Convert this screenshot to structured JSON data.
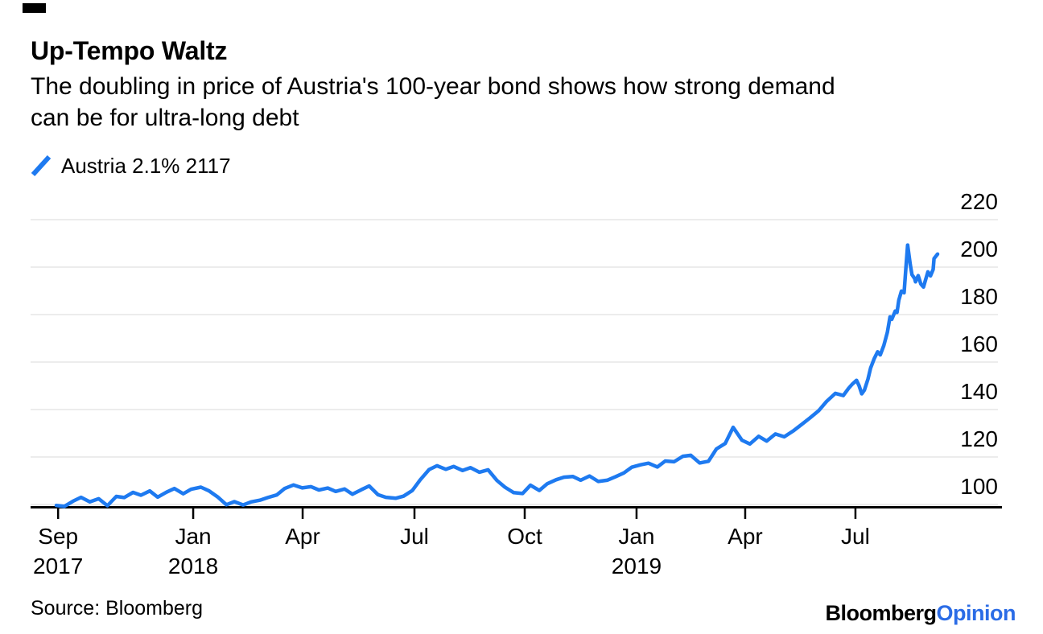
{
  "header": {
    "title": "Up-Tempo Waltz",
    "subtitle_line1": "The doubling in price of Austria's 100-year bond shows how strong demand",
    "subtitle_line2": "can be for ultra-long debt"
  },
  "legend": {
    "label": "Austria 2.1% 2117"
  },
  "footer": {
    "source": "Source: Bloomberg",
    "logo_black": "Bloomberg",
    "logo_accent": "Opinion"
  },
  "colors": {
    "line_blue": "#1e7af0",
    "logo_accent_blue": "#2b6ce6",
    "gridline_gray": "#e6e6e6",
    "axis_black": "#000000"
  },
  "chart_data": {
    "type": "line",
    "title": "Up-Tempo Waltz",
    "subtitle": "The doubling in price of Austria's 100-year bond shows how strong demand can be for ultra-long debt",
    "xlabel": "",
    "ylabel": "",
    "ylim": [
      97,
      222
    ],
    "grid": "horizontal-only",
    "legend_position": "top-left",
    "y_ticks": [
      220,
      200,
      180,
      160,
      140,
      120,
      100
    ],
    "x_ticks": [
      {
        "label": "Sep",
        "sublabel": "2017",
        "t": 0.002
      },
      {
        "label": "Jan",
        "sublabel": "2018",
        "t": 0.1553
      },
      {
        "label": "Apr",
        "sublabel": "",
        "t": 0.2795
      },
      {
        "label": "Jul",
        "sublabel": "",
        "t": 0.4064
      },
      {
        "label": "Oct",
        "sublabel": "",
        "t": 0.5315
      },
      {
        "label": "Jan",
        "sublabel": "2019",
        "t": 0.6584
      },
      {
        "label": "Apr",
        "sublabel": "",
        "t": 0.7817
      },
      {
        "label": "Jul",
        "sublabel": "",
        "t": 0.9068
      }
    ],
    "series": [
      {
        "name": "Austria 2.1% 2117",
        "color": "#1e7af0",
        "x_unit": "fraction of timeline Sep 2017 to Sep 2019",
        "y_unit": "bond price",
        "points": [
          [
            0,
            99.6
          ],
          [
            0.009,
            99.2
          ],
          [
            0.019,
            101.4
          ],
          [
            0.028,
            103
          ],
          [
            0.038,
            101.1
          ],
          [
            0.048,
            102.4
          ],
          [
            0.058,
            99.5
          ],
          [
            0.068,
            103.4
          ],
          [
            0.077,
            102.9
          ],
          [
            0.087,
            105.1
          ],
          [
            0.096,
            103.9
          ],
          [
            0.106,
            105.7
          ],
          [
            0.115,
            103.1
          ],
          [
            0.125,
            105.2
          ],
          [
            0.134,
            106.7
          ],
          [
            0.144,
            104.5
          ],
          [
            0.153,
            106.4
          ],
          [
            0.164,
            107.3
          ],
          [
            0.173,
            105.8
          ],
          [
            0.183,
            103.2
          ],
          [
            0.193,
            99.9
          ],
          [
            0.202,
            101.2
          ],
          [
            0.212,
            99.8
          ],
          [
            0.221,
            101.1
          ],
          [
            0.231,
            101.8
          ],
          [
            0.24,
            102.9
          ],
          [
            0.25,
            104
          ],
          [
            0.259,
            106.7
          ],
          [
            0.269,
            108.2
          ],
          [
            0.279,
            107
          ],
          [
            0.289,
            107.5
          ],
          [
            0.298,
            106.1
          ],
          [
            0.308,
            106.9
          ],
          [
            0.317,
            105.5
          ],
          [
            0.327,
            106.5
          ],
          [
            0.336,
            104.3
          ],
          [
            0.346,
            106.2
          ],
          [
            0.355,
            107.8
          ],
          [
            0.365,
            104.1
          ],
          [
            0.374,
            103
          ],
          [
            0.385,
            102.6
          ],
          [
            0.394,
            103.5
          ],
          [
            0.404,
            105.9
          ],
          [
            0.413,
            110.4
          ],
          [
            0.423,
            114.7
          ],
          [
            0.432,
            116.3
          ],
          [
            0.442,
            114.8
          ],
          [
            0.451,
            116
          ],
          [
            0.461,
            114.3
          ],
          [
            0.47,
            115.5
          ],
          [
            0.48,
            113.6
          ],
          [
            0.49,
            114.6
          ],
          [
            0.5,
            110.1
          ],
          [
            0.509,
            107.3
          ],
          [
            0.519,
            105
          ],
          [
            0.529,
            104.6
          ],
          [
            0.538,
            108.1
          ],
          [
            0.548,
            105.9
          ],
          [
            0.557,
            108.7
          ],
          [
            0.567,
            110.4
          ],
          [
            0.576,
            111.5
          ],
          [
            0.586,
            111.8
          ],
          [
            0.595,
            110.2
          ],
          [
            0.605,
            112
          ],
          [
            0.615,
            109.7
          ],
          [
            0.625,
            110.2
          ],
          [
            0.634,
            111.6
          ],
          [
            0.644,
            113.3
          ],
          [
            0.653,
            115.7
          ],
          [
            0.663,
            116.7
          ],
          [
            0.672,
            117.4
          ],
          [
            0.682,
            115.8
          ],
          [
            0.691,
            118.3
          ],
          [
            0.701,
            118
          ],
          [
            0.711,
            120.3
          ],
          [
            0.72,
            120.7
          ],
          [
            0.73,
            117.5
          ],
          [
            0.74,
            118.2
          ],
          [
            0.749,
            123.4
          ],
          [
            0.759,
            125.7
          ],
          [
            0.768,
            132.5
          ],
          [
            0.778,
            127.1
          ],
          [
            0.787,
            125.5
          ],
          [
            0.797,
            128.7
          ],
          [
            0.806,
            126.7
          ],
          [
            0.816,
            129.7
          ],
          [
            0.826,
            128.5
          ],
          [
            0.836,
            130.9
          ],
          [
            0.846,
            133.8
          ],
          [
            0.855,
            136.4
          ],
          [
            0.865,
            139.5
          ],
          [
            0.874,
            143.4
          ],
          [
            0.884,
            146.8
          ],
          [
            0.893,
            145.9
          ],
          [
            0.899,
            148.9
          ],
          [
            0.903,
            150.6
          ],
          [
            0.908,
            152.3
          ],
          [
            0.911,
            150
          ],
          [
            0.914,
            146.6
          ],
          [
            0.917,
            148.2
          ],
          [
            0.921,
            152.8
          ],
          [
            0.924,
            157.5
          ],
          [
            0.928,
            161.4
          ],
          [
            0.932,
            164.3
          ],
          [
            0.935,
            163
          ],
          [
            0.939,
            167
          ],
          [
            0.943,
            172.5
          ],
          [
            0.946,
            179
          ],
          [
            0.948,
            178
          ],
          [
            0.952,
            181.5
          ],
          [
            0.954,
            180.9
          ],
          [
            0.956,
            186
          ],
          [
            0.959,
            189.9
          ],
          [
            0.962,
            189.2
          ],
          [
            0.964,
            199.5
          ],
          [
            0.966,
            209.3
          ],
          [
            0.969,
            201
          ],
          [
            0.971,
            196.8
          ],
          [
            0.974,
            195.2
          ],
          [
            0.975,
            193.8
          ],
          [
            0.978,
            196.4
          ],
          [
            0.981,
            192.9
          ],
          [
            0.984,
            191.6
          ],
          [
            0.986,
            194.2
          ],
          [
            0.989,
            198
          ],
          [
            0.992,
            196.3
          ],
          [
            0.995,
            199
          ],
          [
            0.996,
            203.6
          ],
          [
            1,
            205.5
          ]
        ]
      }
    ]
  }
}
